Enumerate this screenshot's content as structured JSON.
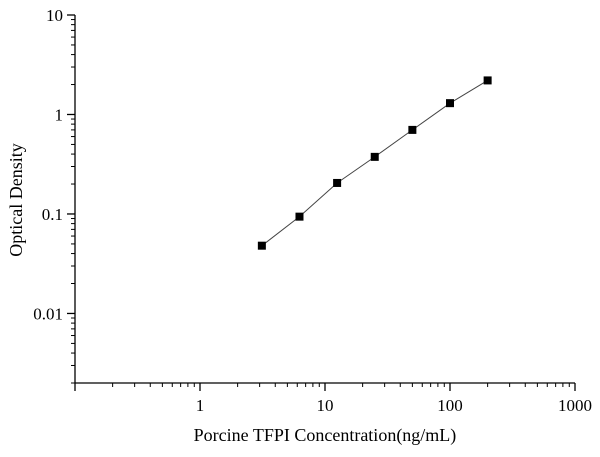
{
  "chart_data": {
    "type": "scatter",
    "title": "",
    "xlabel": "Porcine TFPI Concentration(ng/mL)",
    "ylabel": "Optical Density",
    "xscale": "log",
    "yscale": "log",
    "xlim": [
      0.1,
      1000
    ],
    "ylim": [
      0.002,
      10
    ],
    "xticks": [
      1,
      10,
      100,
      1000
    ],
    "xtick_labels": [
      "1",
      "10",
      "100",
      "1000"
    ],
    "yticks": [
      0.01,
      0.1,
      1,
      10
    ],
    "ytick_labels": [
      "0.01",
      "0.1",
      "1",
      "10"
    ],
    "grid": false,
    "legend": "none",
    "series": [
      {
        "marker": "square",
        "color": "#000000",
        "fit_line": true,
        "x": [
          3.125,
          6.25,
          12.5,
          25,
          50,
          100,
          200
        ],
        "y": [
          0.048,
          0.094,
          0.205,
          0.375,
          0.7,
          1.3,
          2.2
        ]
      }
    ]
  }
}
